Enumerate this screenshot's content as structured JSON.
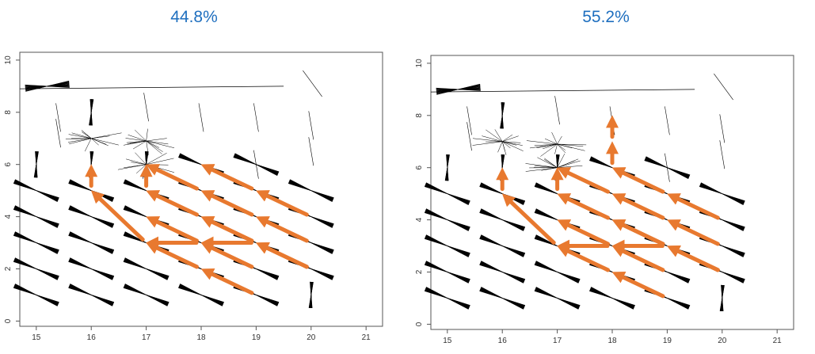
{
  "chart_data": [
    {
      "type": "vector-field",
      "title": "44.8%",
      "xlim": [
        14.7,
        21.3
      ],
      "ylim": [
        -0.2,
        10.3
      ],
      "x_ticks": [
        "15",
        "16",
        "17",
        "18",
        "19",
        "20",
        "21"
      ],
      "y_ticks": [
        "0",
        "2",
        "4",
        "6",
        "8",
        "10"
      ],
      "path_color": "#e8792f",
      "paths": [
        [
          [
            19,
            1
          ],
          [
            18,
            2
          ],
          [
            17,
            3
          ],
          [
            16,
            5
          ],
          [
            16,
            6
          ]
        ],
        [
          [
            20,
            2
          ],
          [
            19,
            3
          ],
          [
            18,
            4
          ],
          [
            17,
            5
          ],
          [
            17,
            6
          ]
        ],
        [
          [
            20,
            3
          ],
          [
            19,
            4
          ],
          [
            18,
            5
          ],
          [
            17,
            6
          ]
        ],
        [
          [
            20,
            4
          ],
          [
            19,
            5
          ],
          [
            18,
            6
          ]
        ],
        [
          [
            19,
            2
          ],
          [
            18,
            3
          ],
          [
            17,
            4
          ]
        ],
        [
          [
            19,
            3
          ],
          [
            18,
            4
          ]
        ],
        [
          [
            20,
            2
          ],
          [
            19,
            3
          ],
          [
            18,
            3
          ],
          [
            17,
            3
          ]
        ]
      ]
    },
    {
      "type": "vector-field",
      "title": "55.2%",
      "xlim": [
        14.7,
        21.3
      ],
      "ylim": [
        -0.2,
        10.3
      ],
      "x_ticks": [
        "15",
        "16",
        "17",
        "18",
        "19",
        "20",
        "21"
      ],
      "y_ticks": [
        "0",
        "2",
        "4",
        "6",
        "8",
        "10"
      ],
      "path_color": "#e8792f",
      "paths": [
        [
          [
            19,
            1
          ],
          [
            18,
            2
          ],
          [
            17,
            3
          ],
          [
            16,
            5
          ],
          [
            16,
            6
          ]
        ],
        [
          [
            20,
            2
          ],
          [
            19,
            3
          ],
          [
            18,
            4
          ],
          [
            17,
            5
          ],
          [
            17,
            6
          ]
        ],
        [
          [
            20,
            3
          ],
          [
            19,
            4
          ],
          [
            18,
            5
          ],
          [
            17,
            6
          ]
        ],
        [
          [
            20,
            4
          ],
          [
            19,
            5
          ],
          [
            18,
            6
          ],
          [
            18,
            7
          ],
          [
            18,
            8
          ]
        ],
        [
          [
            19,
            2
          ],
          [
            18,
            3
          ],
          [
            17,
            4
          ]
        ],
        [
          [
            19,
            3
          ],
          [
            18,
            4
          ]
        ],
        [
          [
            20,
            2
          ],
          [
            19,
            3
          ],
          [
            18,
            3
          ],
          [
            17,
            3
          ]
        ]
      ]
    }
  ]
}
